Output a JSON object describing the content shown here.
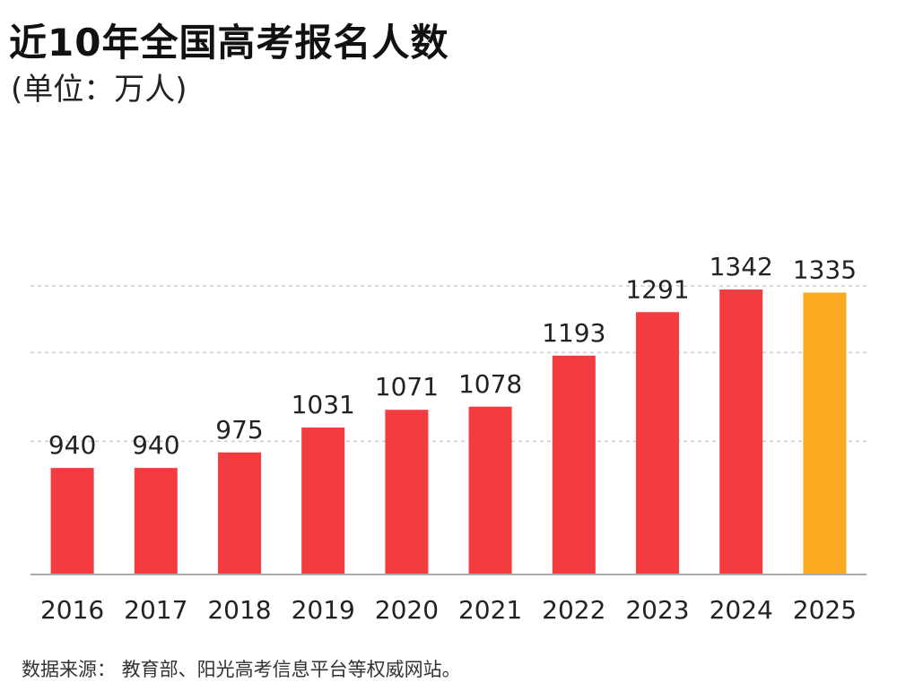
{
  "title": "近10年全国高考报名人数",
  "subtitle": "(单位：万人)",
  "source": "数据来源：  教育部、阳光高考信息平台等权威网站。",
  "colors": {
    "bar": "#f23c3f",
    "highlight": "#fba921",
    "grid": "#cccccc",
    "axis": "#aaaaaa"
  },
  "chart_data": {
    "type": "bar",
    "title": "近10年全国高考报名人数",
    "ylabel": "(单位：万人)",
    "xlabel": "",
    "categories": [
      "2016",
      "2017",
      "2018",
      "2019",
      "2020",
      "2021",
      "2022",
      "2023",
      "2024",
      "2025"
    ],
    "values": [
      940,
      940,
      975,
      1031,
      1071,
      1078,
      1193,
      1291,
      1342,
      1335
    ],
    "highlight_index": 9,
    "ylim": [
      700,
      1400
    ],
    "grid": true,
    "legend": "none"
  }
}
